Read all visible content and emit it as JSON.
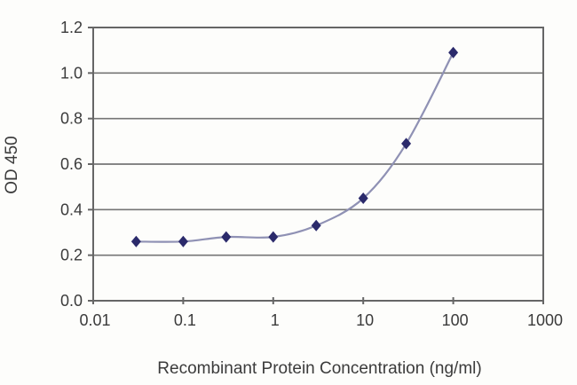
{
  "chart_data": {
    "type": "line",
    "title": "",
    "xlabel": "Recombinant Protein Concentration (ng/ml)",
    "ylabel": "OD 450",
    "x_scale": "log",
    "xlim": [
      0.01,
      1000
    ],
    "ylim": [
      0,
      1.2
    ],
    "x_ticks": [
      "0.01",
      "0.1",
      "1",
      "10",
      "100",
      "1000"
    ],
    "x_tick_values": [
      0.01,
      0.1,
      1,
      10,
      100,
      1000
    ],
    "y_ticks": [
      "0.0",
      "0.2",
      "0.4",
      "0.6",
      "0.8",
      "1.0",
      "1.2"
    ],
    "y_tick_values": [
      0,
      0.2,
      0.4,
      0.6,
      0.8,
      1.0,
      1.2
    ],
    "grid": "horizontal",
    "legend_position": "none",
    "series": [
      {
        "name": "OD 450",
        "marker": "diamond",
        "x": [
          0.03,
          0.1,
          0.3,
          1,
          3,
          10,
          30,
          100
        ],
        "y": [
          0.26,
          0.26,
          0.28,
          0.28,
          0.33,
          0.45,
          0.69,
          1.09
        ],
        "line_color": "#8f91b4",
        "marker_color": "#2b2a6b"
      }
    ],
    "colors": {
      "grid": "#757575",
      "axis": "#666666",
      "text": "#3b3b3b",
      "background": "#fdfdfb"
    }
  }
}
